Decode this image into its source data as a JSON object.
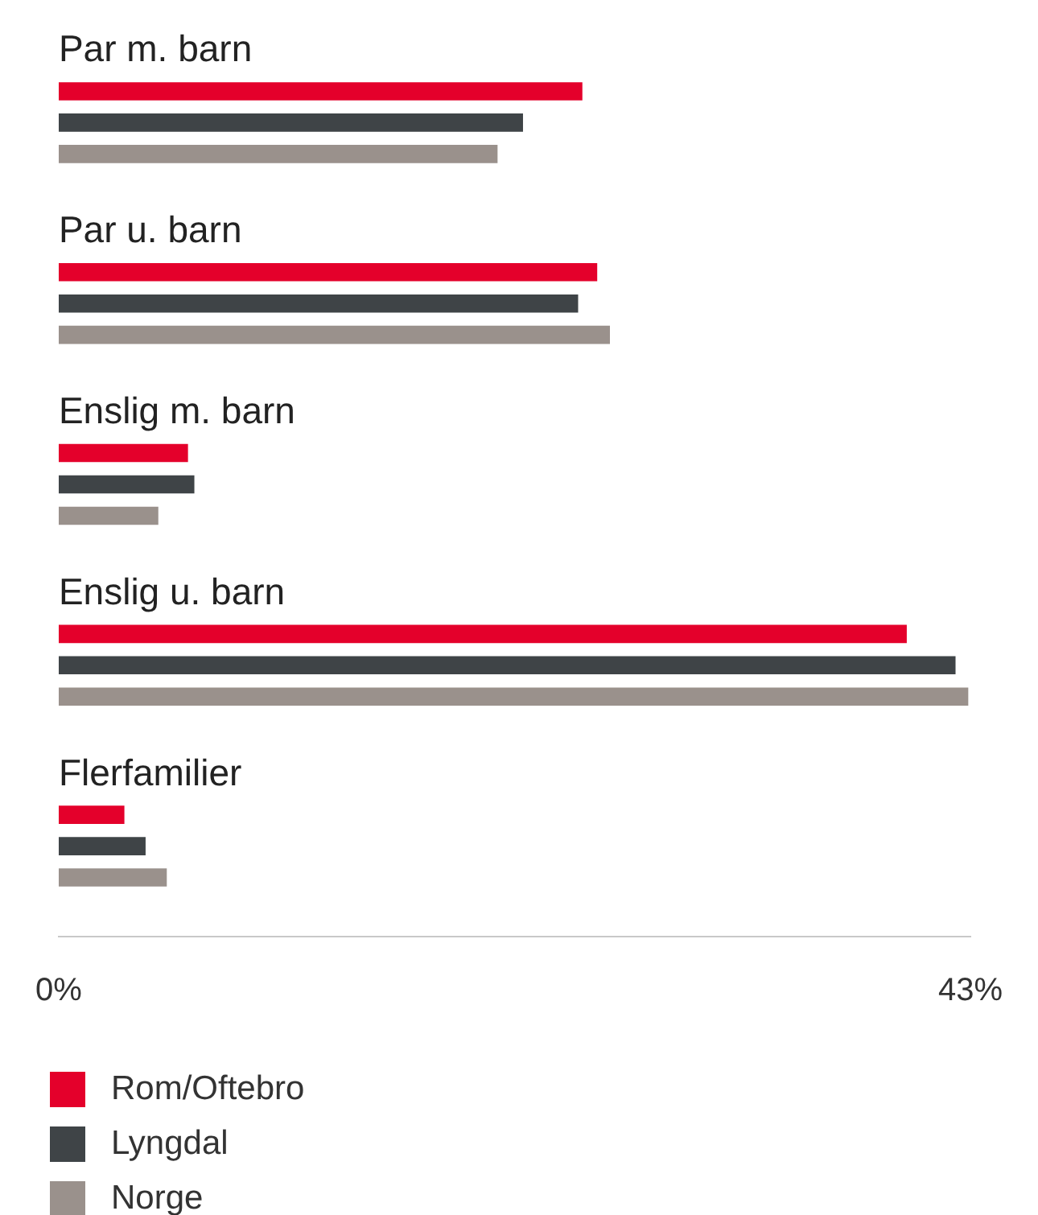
{
  "chart_data": {
    "type": "bar",
    "orientation": "horizontal",
    "categories": [
      "Par m. barn",
      "Par u. barn",
      "Enslig m. barn",
      "Enslig u. barn",
      "Flerfamilier"
    ],
    "series": [
      {
        "name": "Rom/Oftebro",
        "color": "#e4002b",
        "values": [
          24.7,
          25.4,
          6.1,
          40.0,
          3.1
        ]
      },
      {
        "name": "Lyngdal",
        "color": "#3f4447",
        "values": [
          21.9,
          24.5,
          6.4,
          42.3,
          4.1
        ]
      },
      {
        "name": "Norge",
        "color": "#9a918c",
        "values": [
          20.7,
          26.0,
          4.7,
          42.9,
          5.1
        ]
      }
    ],
    "xlim": [
      0,
      43
    ],
    "xticks": [
      {
        "value": 0,
        "label": "0%"
      },
      {
        "value": 43,
        "label": "43%"
      }
    ],
    "grid": false,
    "legend": "bottom"
  }
}
